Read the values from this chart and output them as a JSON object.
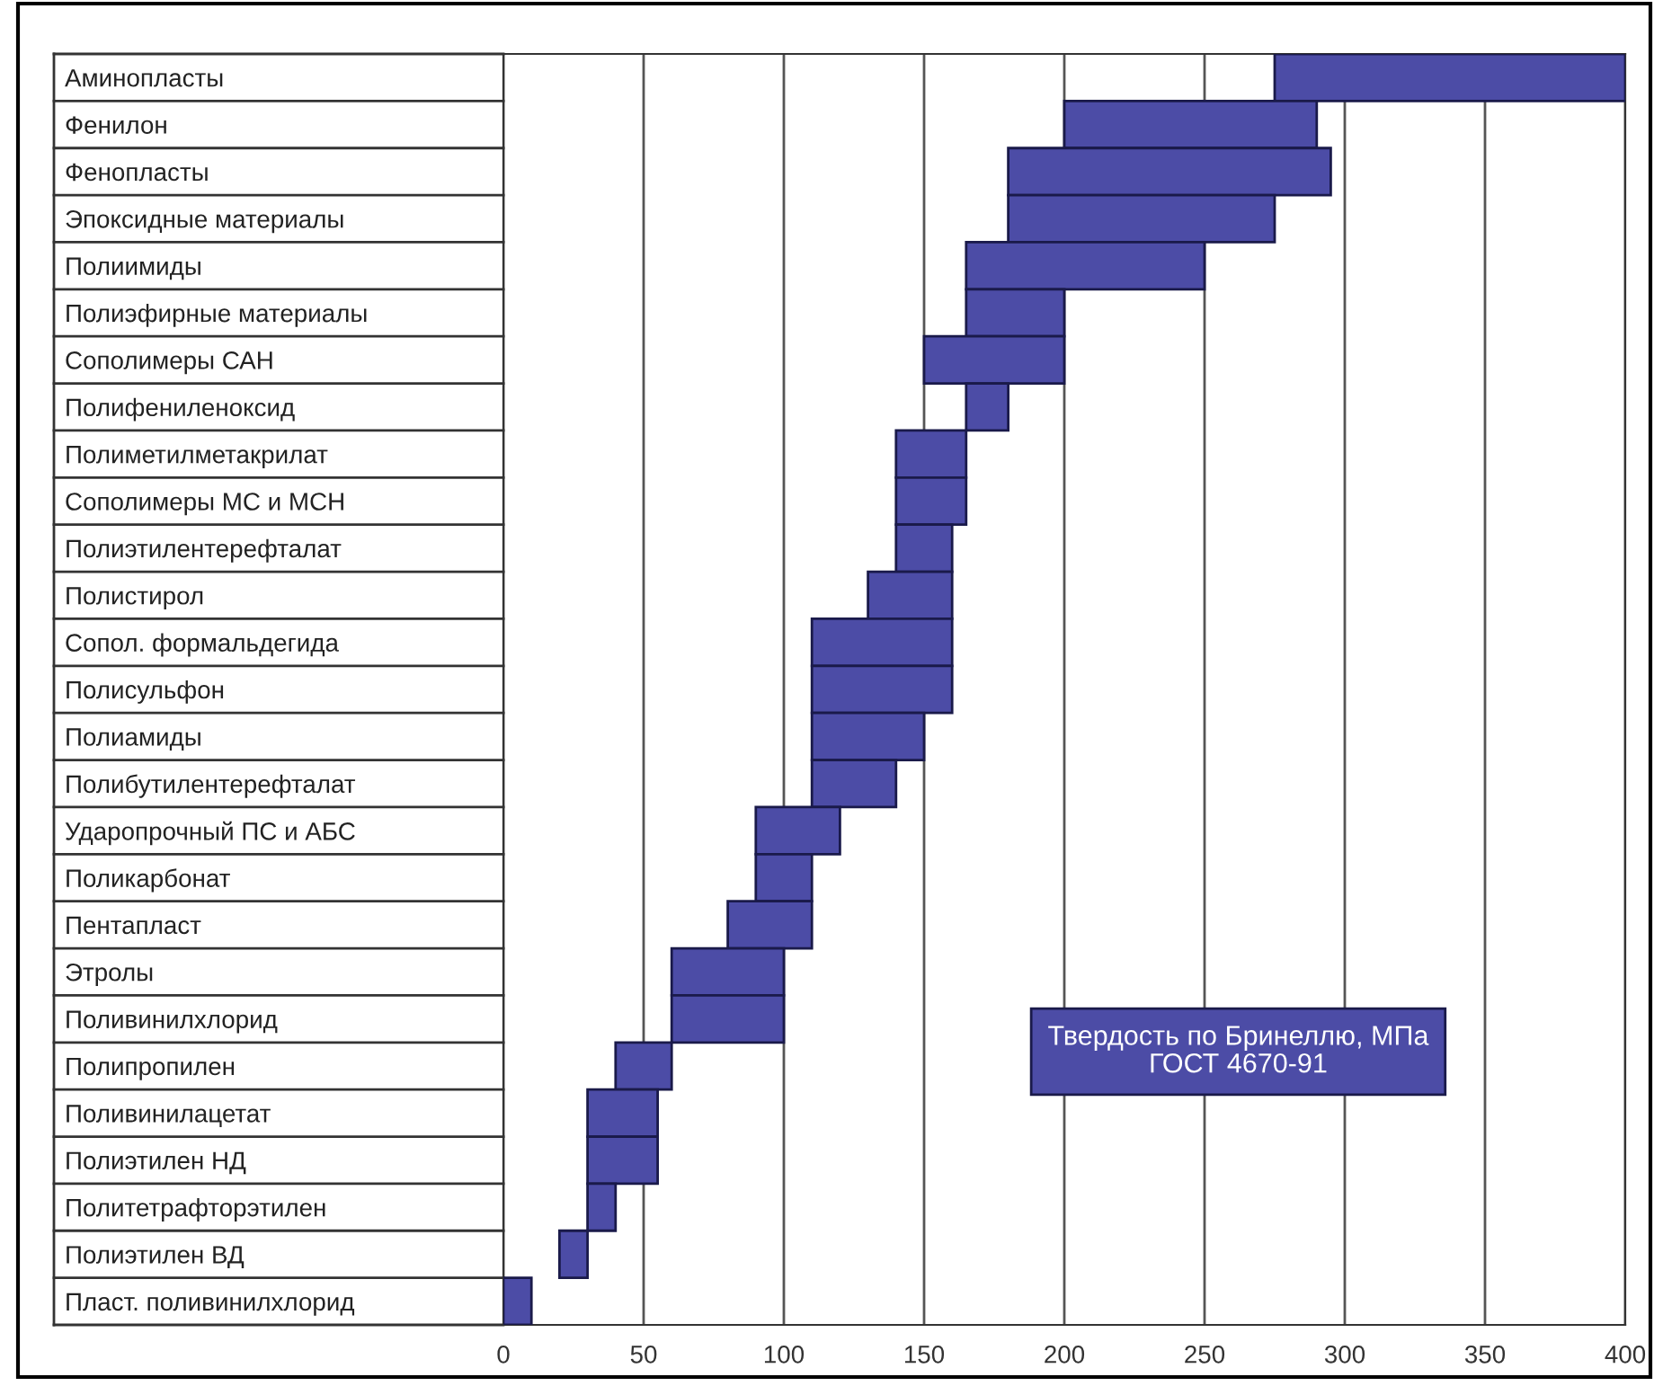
{
  "chart_data": {
    "type": "bar",
    "orientation": "horizontal",
    "categories": [
      "Аминопласты",
      "Фенилон",
      "Фенопласты",
      "Эпоксидные материалы",
      "Полиимиды",
      "Полиэфирные материалы",
      "Сополимеры САН",
      "Полифениленоксид",
      "Полиметилметакрилат",
      "Сополимеры МС и МСН",
      "Полиэтилентерефталат",
      "Полистирол",
      "Сопол. формальдегида",
      "Полисульфон",
      "Полиамиды",
      "Полибутилентерефталат",
      "Ударопрочный ПС и АБС",
      "Поликарбонат",
      "Пентапласт",
      "Этролы",
      "Поливинилхлорид",
      "Полипропилен",
      "Поливинилацетат",
      "Полиэтилен НД",
      "Политетрафторэтилен",
      "Полиэтилен ВД",
      "Пласт. поливинилхлорид"
    ],
    "base": [
      275,
      200,
      180,
      180,
      165,
      165,
      150,
      165,
      140,
      140,
      140,
      130,
      110,
      110,
      110,
      110,
      90,
      90,
      80,
      60,
      60,
      40,
      30,
      30,
      30,
      20,
      0
    ],
    "values": [
      125,
      90,
      115,
      95,
      85,
      35,
      50,
      15,
      25,
      25,
      20,
      30,
      50,
      50,
      40,
      30,
      30,
      20,
      30,
      40,
      40,
      20,
      25,
      25,
      10,
      10,
      10
    ],
    "color": "#4c4ca6",
    "xlim": [
      0,
      400
    ],
    "xticks": [
      0,
      50,
      100,
      150,
      200,
      250,
      300,
      350,
      400
    ],
    "grid": "x",
    "annotations": [
      "Твердость по Бринеллю, МПа\nГОСТ 4670-91"
    ]
  }
}
